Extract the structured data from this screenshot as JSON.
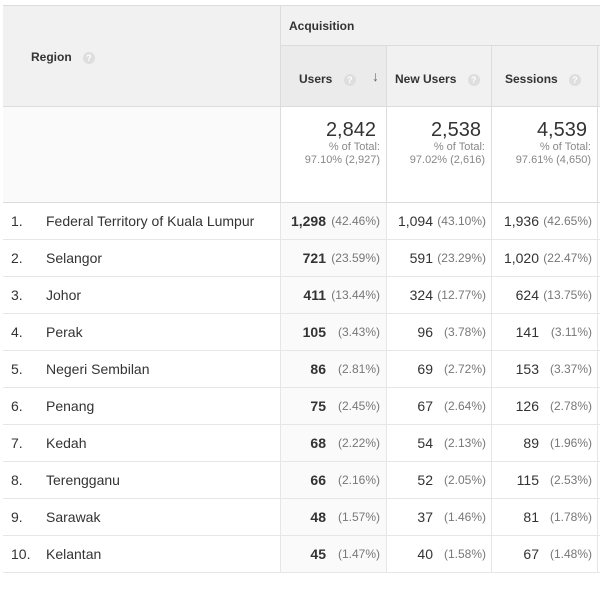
{
  "header": {
    "region_label": "Region",
    "help_icon": "?",
    "group_label": "Acquisition",
    "columns": {
      "users": "Users",
      "new_users": "New Users",
      "sessions": "Sessions"
    },
    "sort_icon": "↓"
  },
  "totals": {
    "users": {
      "value": "2,842",
      "label": "% of Total:",
      "detail": "97.10% (2,927)"
    },
    "new_users": {
      "value": "2,538",
      "label": "% of Total:",
      "detail": "97.02% (2,616)"
    },
    "sessions": {
      "value": "4,539",
      "label": "% of Total:",
      "detail": "97.61% (4,650)"
    }
  },
  "rows": [
    {
      "index": "1.",
      "region": "Federal Territory of Kuala Lumpur",
      "users": "1,298",
      "users_pct": "(42.46%)",
      "new_users": "1,094",
      "new_users_pct": "(43.10%)",
      "sessions": "1,936",
      "sessions_pct": "(42.65%)"
    },
    {
      "index": "2.",
      "region": "Selangor",
      "users": "721",
      "users_pct": "(23.59%)",
      "new_users": "591",
      "new_users_pct": "(23.29%)",
      "sessions": "1,020",
      "sessions_pct": "(22.47%)"
    },
    {
      "index": "3.",
      "region": "Johor",
      "users": "411",
      "users_pct": "(13.44%)",
      "new_users": "324",
      "new_users_pct": "(12.77%)",
      "sessions": "624",
      "sessions_pct": "(13.75%)"
    },
    {
      "index": "4.",
      "region": "Perak",
      "users": "105",
      "users_pct": "(3.43%)",
      "new_users": "96",
      "new_users_pct": "(3.78%)",
      "sessions": "141",
      "sessions_pct": "(3.11%)"
    },
    {
      "index": "5.",
      "region": "Negeri Sembilan",
      "users": "86",
      "users_pct": "(2.81%)",
      "new_users": "69",
      "new_users_pct": "(2.72%)",
      "sessions": "153",
      "sessions_pct": "(3.37%)"
    },
    {
      "index": "6.",
      "region": "Penang",
      "users": "75",
      "users_pct": "(2.45%)",
      "new_users": "67",
      "new_users_pct": "(2.64%)",
      "sessions": "126",
      "sessions_pct": "(2.78%)"
    },
    {
      "index": "7.",
      "region": "Kedah",
      "users": "68",
      "users_pct": "(2.22%)",
      "new_users": "54",
      "new_users_pct": "(2.13%)",
      "sessions": "89",
      "sessions_pct": "(1.96%)"
    },
    {
      "index": "8.",
      "region": "Terengganu",
      "users": "66",
      "users_pct": "(2.16%)",
      "new_users": "52",
      "new_users_pct": "(2.05%)",
      "sessions": "115",
      "sessions_pct": "(2.53%)"
    },
    {
      "index": "9.",
      "region": "Sarawak",
      "users": "48",
      "users_pct": "(1.57%)",
      "new_users": "37",
      "new_users_pct": "(1.46%)",
      "sessions": "81",
      "sessions_pct": "(1.78%)"
    },
    {
      "index": "10.",
      "region": "Kelantan",
      "users": "45",
      "users_pct": "(1.47%)",
      "new_users": "40",
      "new_users_pct": "(1.58%)",
      "sessions": "67",
      "sessions_pct": "(1.48%)"
    }
  ]
}
